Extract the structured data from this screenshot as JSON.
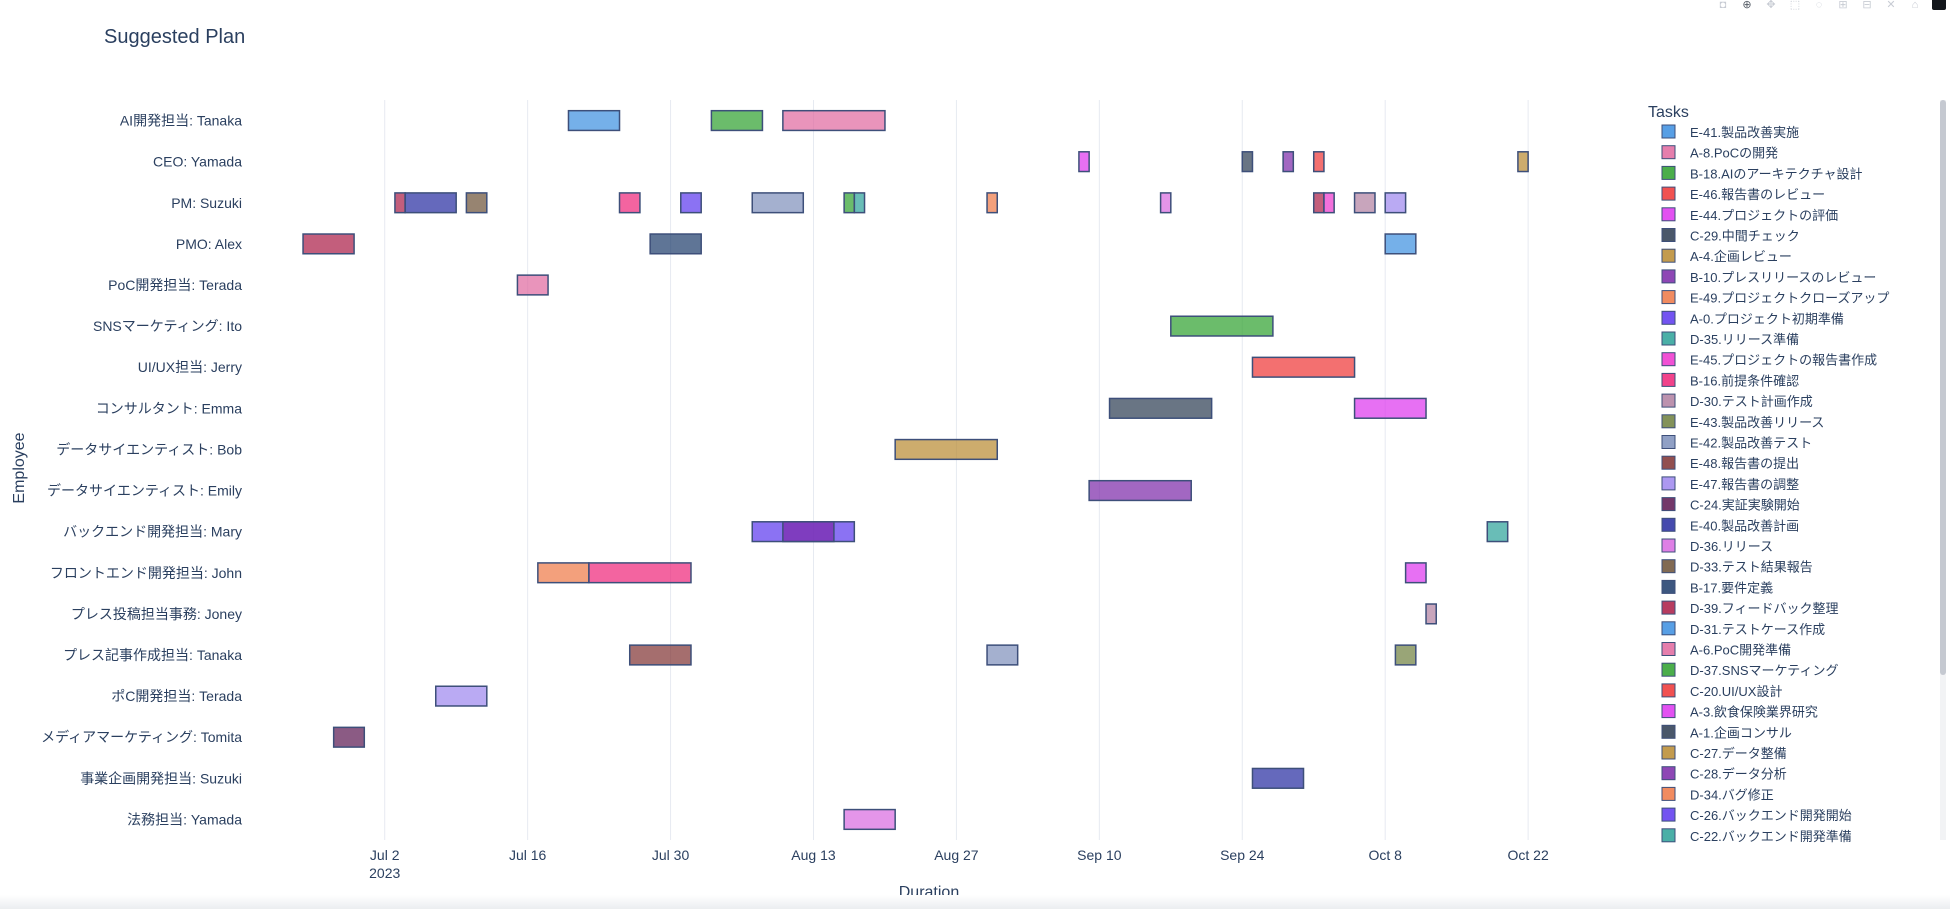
{
  "modebar": {
    "buttons": [
      {
        "name": "camera-icon",
        "glyph": "◘"
      },
      {
        "name": "zoom-icon",
        "glyph": "⊕"
      },
      {
        "name": "pan-icon",
        "glyph": "✥"
      },
      {
        "name": "box-select-icon",
        "glyph": "⬚"
      },
      {
        "name": "lasso-icon",
        "glyph": "◌"
      },
      {
        "name": "zoom-in-icon",
        "glyph": "⊞"
      },
      {
        "name": "zoom-out-icon",
        "glyph": "⊟"
      },
      {
        "name": "autoscale-icon",
        "glyph": "✕"
      },
      {
        "name": "home-icon",
        "glyph": "⌂"
      }
    ]
  },
  "chart_data": {
    "type": "gantt",
    "title": "Suggested Plan",
    "xlabel": "Duration",
    "ylabel": "Employee",
    "legend_title": "Tasks",
    "legend_position": "right",
    "grid": true,
    "x_range": [
      "2023-06-19",
      "2023-10-31"
    ],
    "x_ticks": [
      {
        "date": "2023-07-02",
        "label": "Jul 2",
        "sub": "2023"
      },
      {
        "date": "2023-07-16",
        "label": "Jul 16"
      },
      {
        "date": "2023-07-30",
        "label": "Jul 30"
      },
      {
        "date": "2023-08-13",
        "label": "Aug 13"
      },
      {
        "date": "2023-08-27",
        "label": "Aug 27"
      },
      {
        "date": "2023-09-10",
        "label": "Sep 10"
      },
      {
        "date": "2023-09-24",
        "label": "Sep 24"
      },
      {
        "date": "2023-10-08",
        "label": "Oct 8"
      },
      {
        "date": "2023-10-22",
        "label": "Oct 22"
      }
    ],
    "categories": [
      "AI開発担当: Tanaka",
      "CEO: Yamada",
      "PM: Suzuki",
      "PMO: Alex",
      "PoC開発担当: Terada",
      "SNSマーケティング: Ito",
      "UI/UX担当: Jerry",
      "コンサルタント: Emma",
      "データサイエンティスト: Bob",
      "データサイエンティスト: Emily",
      "バックエンド開発担当: Mary",
      "フロントエンド開発担当: John",
      "プレス投稿担当事務: Joney",
      "プレス記事作成担当: Tanaka",
      "ポC開発担当: Terada",
      "メディアマーケティング: Tomita",
      "事業企画開発担当: Suzuki",
      "法務担当: Yamada"
    ],
    "tasks": [
      {
        "name": "E-41.製品改善実施",
        "color": "#3b8ee0"
      },
      {
        "name": "A-8.PoCの開発",
        "color": "#e0679e"
      },
      {
        "name": "B-18.AIのアーキテクチャ設計",
        "color": "#2ca02c"
      },
      {
        "name": "E-46.報告書のレビュー",
        "color": "#ee3333"
      },
      {
        "name": "E-44.プロジェクトの評価",
        "color": "#dd33ee"
      },
      {
        "name": "C-29.中間チェック",
        "color": "#2a3a50"
      },
      {
        "name": "A-4.企画レビュー",
        "color": "#b8892f"
      },
      {
        "name": "B-10.プレスリリースのレビュー",
        "color": "#7a27a8"
      },
      {
        "name": "E-49.プロジェクトクローズアップ",
        "color": "#ee7744"
      },
      {
        "name": "A-0.プロジェクト初期準備",
        "color": "#5a36ee"
      },
      {
        "name": "D-35.リリース準備",
        "color": "#2aa198"
      },
      {
        "name": "E-45.プロジェクトの報告書作成",
        "color": "#ee33cc"
      },
      {
        "name": "B-16.前提条件確認",
        "color": "#ee2277"
      },
      {
        "name": "D-30.テスト計画作成",
        "color": "#b07fa0"
      },
      {
        "name": "E-43.製品改善リリース",
        "color": "#6d7f3d"
      },
      {
        "name": "E-42.製品改善テスト",
        "color": "#7d8fbb"
      },
      {
        "name": "E-48.報告書の提出",
        "color": "#7f3030"
      },
      {
        "name": "E-47.報告書の調整",
        "color": "#9d86ee"
      },
      {
        "name": "C-24.実証実験開始",
        "color": "#5a1550"
      },
      {
        "name": "E-40.製品改善計画",
        "color": "#242aa0"
      },
      {
        "name": "D-36.リリース",
        "color": "#d868e0"
      },
      {
        "name": "D-33.テスト結果報告",
        "color": "#6b5035"
      },
      {
        "name": "B-17.要件定義",
        "color": "#1b3a6a"
      },
      {
        "name": "D-39.フィードバック整理",
        "color": "#aa1a44"
      },
      {
        "name": "D-31.テストケース作成",
        "color": "#3b8ee0"
      },
      {
        "name": "A-6.PoC開発準備",
        "color": "#e0679e"
      },
      {
        "name": "D-37.SNSマーケティング",
        "color": "#2ca02c"
      },
      {
        "name": "C-20.UI/UX設計",
        "color": "#ee3333"
      },
      {
        "name": "A-3.飲食保険業界研究",
        "color": "#dd33ee"
      },
      {
        "name": "A-1.企画コンサル",
        "color": "#2a3a50"
      },
      {
        "name": "C-27.データ整備",
        "color": "#b8892f"
      },
      {
        "name": "C-28.データ分析",
        "color": "#7a27a8"
      },
      {
        "name": "D-34.バグ修正",
        "color": "#ee7744"
      },
      {
        "name": "C-26.バックエンド開発開始",
        "color": "#5a36ee"
      },
      {
        "name": "C-22.バックエンド開発準備",
        "color": "#2aa198"
      }
    ],
    "bars": [
      {
        "resource": "AI開発担当: Tanaka",
        "start": "2023-07-20",
        "end": "2023-07-25",
        "color": "#3b8ee0"
      },
      {
        "resource": "AI開発担当: Tanaka",
        "start": "2023-08-03",
        "end": "2023-08-08",
        "color": "#2ca02c"
      },
      {
        "resource": "AI開発担当: Tanaka",
        "start": "2023-08-10",
        "end": "2023-08-20",
        "color": "#e0679e"
      },
      {
        "resource": "CEO: Yamada",
        "start": "2023-09-08",
        "end": "2023-09-09",
        "color": "#dd33ee"
      },
      {
        "resource": "CEO: Yamada",
        "start": "2023-09-24",
        "end": "2023-09-25",
        "color": "#2a3a50"
      },
      {
        "resource": "CEO: Yamada",
        "start": "2023-09-28",
        "end": "2023-09-29",
        "color": "#7a27a8"
      },
      {
        "resource": "CEO: Yamada",
        "start": "2023-10-01",
        "end": "2023-10-02",
        "color": "#ee3333"
      },
      {
        "resource": "CEO: Yamada",
        "start": "2023-10-21",
        "end": "2023-10-22",
        "color": "#b8892f"
      },
      {
        "resource": "PM: Suzuki",
        "start": "2023-07-03",
        "end": "2023-07-04",
        "color": "#aa1a44"
      },
      {
        "resource": "PM: Suzuki",
        "start": "2023-07-04",
        "end": "2023-07-09",
        "color": "#242aa0"
      },
      {
        "resource": "PM: Suzuki",
        "start": "2023-07-10",
        "end": "2023-07-12",
        "color": "#6b5035"
      },
      {
        "resource": "PM: Suzuki",
        "start": "2023-07-25",
        "end": "2023-07-27",
        "color": "#ee2277"
      },
      {
        "resource": "PM: Suzuki",
        "start": "2023-07-31",
        "end": "2023-08-02",
        "color": "#5a36ee"
      },
      {
        "resource": "PM: Suzuki",
        "start": "2023-08-07",
        "end": "2023-08-12",
        "color": "#7d8fbb"
      },
      {
        "resource": "PM: Suzuki",
        "start": "2023-08-16",
        "end": "2023-08-17",
        "color": "#2ca02c"
      },
      {
        "resource": "PM: Suzuki",
        "start": "2023-08-17",
        "end": "2023-08-18",
        "color": "#2aa198"
      },
      {
        "resource": "PM: Suzuki",
        "start": "2023-08-30",
        "end": "2023-08-31",
        "color": "#ee7744"
      },
      {
        "resource": "PM: Suzuki",
        "start": "2023-09-16",
        "end": "2023-09-17",
        "color": "#d868e0"
      },
      {
        "resource": "PM: Suzuki",
        "start": "2023-10-01",
        "end": "2023-10-02",
        "color": "#aa1a44"
      },
      {
        "resource": "PM: Suzuki",
        "start": "2023-10-02",
        "end": "2023-10-03",
        "color": "#ee33cc"
      },
      {
        "resource": "PM: Suzuki",
        "start": "2023-10-05",
        "end": "2023-10-07",
        "color": "#b07fa0"
      },
      {
        "resource": "PM: Suzuki",
        "start": "2023-10-08",
        "end": "2023-10-10",
        "color": "#9d86ee"
      },
      {
        "resource": "PMO: Alex",
        "start": "2023-06-24",
        "end": "2023-06-29",
        "color": "#aa1a44"
      },
      {
        "resource": "PMO: Alex",
        "start": "2023-07-28",
        "end": "2023-08-02",
        "color": "#1b3a6a"
      },
      {
        "resource": "PMO: Alex",
        "start": "2023-10-08",
        "end": "2023-10-11",
        "color": "#3b8ee0"
      },
      {
        "resource": "PoC開発担当: Terada",
        "start": "2023-07-15",
        "end": "2023-07-18",
        "color": "#e0679e"
      },
      {
        "resource": "SNSマーケティング: Ito",
        "start": "2023-09-17",
        "end": "2023-09-27",
        "color": "#2ca02c"
      },
      {
        "resource": "UI/UX担当: Jerry",
        "start": "2023-09-25",
        "end": "2023-10-05",
        "color": "#ee3333"
      },
      {
        "resource": "コンサルタント: Emma",
        "start": "2023-09-11",
        "end": "2023-09-21",
        "color": "#2a3a50"
      },
      {
        "resource": "コンサルタント: Emma",
        "start": "2023-10-05",
        "end": "2023-10-12",
        "color": "#dd33ee"
      },
      {
        "resource": "データサイエンティスト: Bob",
        "start": "2023-08-21",
        "end": "2023-08-31",
        "color": "#b8892f"
      },
      {
        "resource": "データサイエンティスト: Emily",
        "start": "2023-09-09",
        "end": "2023-09-19",
        "color": "#7a27a8"
      },
      {
        "resource": "バックエンド開発担当: Mary",
        "start": "2023-08-07",
        "end": "2023-08-17",
        "color": "#5a36ee"
      },
      {
        "resource": "バックエンド開発担当: Mary",
        "start": "2023-08-10",
        "end": "2023-08-15",
        "color": "#7a27a8"
      },
      {
        "resource": "バックエンド開発担当: Mary",
        "start": "2023-10-18",
        "end": "2023-10-20",
        "color": "#2aa198"
      },
      {
        "resource": "フロントエンド開発担当: John",
        "start": "2023-07-17",
        "end": "2023-07-22",
        "color": "#ee7744"
      },
      {
        "resource": "フロントエンド開発担当: John",
        "start": "2023-07-22",
        "end": "2023-08-01",
        "color": "#ee2277"
      },
      {
        "resource": "フロントエンド開発担当: John",
        "start": "2023-10-10",
        "end": "2023-10-12",
        "color": "#dd33ee"
      },
      {
        "resource": "プレス投稿担当事務: Joney",
        "start": "2023-10-12",
        "end": "2023-10-13",
        "color": "#b07fa0"
      },
      {
        "resource": "プレス記事作成担当: Tanaka",
        "start": "2023-07-26",
        "end": "2023-08-01",
        "color": "#7f3030"
      },
      {
        "resource": "プレス記事作成担当: Tanaka",
        "start": "2023-08-30",
        "end": "2023-09-02",
        "color": "#7d8fbb"
      },
      {
        "resource": "プレス記事作成担当: Tanaka",
        "start": "2023-10-09",
        "end": "2023-10-11",
        "color": "#6d7f3d"
      },
      {
        "resource": "ポC開発担当: Terada",
        "start": "2023-07-07",
        "end": "2023-07-12",
        "color": "#9d86ee"
      },
      {
        "resource": "メディアマーケティング: Tomita",
        "start": "2023-06-27",
        "end": "2023-06-30",
        "color": "#5a1550"
      },
      {
        "resource": "事業企画開発担当: Suzuki",
        "start": "2023-09-25",
        "end": "2023-09-30",
        "color": "#242aa0"
      },
      {
        "resource": "法務担当: Yamada",
        "start": "2023-08-16",
        "end": "2023-08-21",
        "color": "#d868e0"
      }
    ]
  }
}
